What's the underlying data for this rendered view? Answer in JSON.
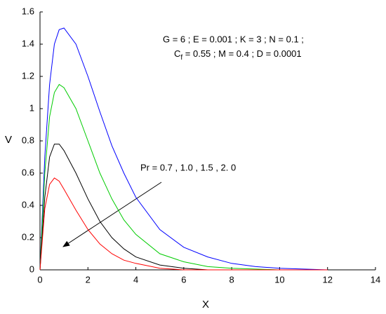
{
  "chart_data": {
    "type": "line",
    "x_label": "X",
    "y_label": "V",
    "annotation_line1": "G = 6 ;  E = 0.001 ; K = 3 ; N = 0.1 ;",
    "annotation_line2": [
      "C",
      "f",
      " = 0.55 ; M = 0.4 ; D = 0.0001"
    ],
    "arrow_label": "Pr = 0.7 , 1.0 , 1.5 , 2. 0",
    "x": [
      0,
      0.2,
      0.4,
      0.6,
      0.8,
      1,
      1.5,
      2,
      2.5,
      3,
      3.5,
      4,
      5,
      6,
      7,
      8,
      9,
      10,
      11,
      12
    ],
    "series": [
      {
        "color": "#0000ff",
        "values": [
          0,
          0.7,
          1.15,
          1.4,
          1.49,
          1.5,
          1.4,
          1.2,
          0.98,
          0.77,
          0.6,
          0.45,
          0.25,
          0.14,
          0.08,
          0.04,
          0.02,
          0.01,
          0.005,
          0
        ]
      },
      {
        "color": "#00cc00",
        "values": [
          0,
          0.6,
          0.95,
          1.1,
          1.15,
          1.13,
          1.0,
          0.8,
          0.6,
          0.44,
          0.31,
          0.22,
          0.1,
          0.05,
          0.02,
          0.01,
          0.005,
          0,
          0,
          0
        ]
      },
      {
        "color": "#000000",
        "values": [
          0,
          0.45,
          0.7,
          0.78,
          0.78,
          0.74,
          0.6,
          0.44,
          0.3,
          0.2,
          0.13,
          0.08,
          0.03,
          0.01,
          0,
          0,
          0,
          0,
          0,
          0
        ]
      },
      {
        "color": "#ff0000",
        "values": [
          0,
          0.38,
          0.53,
          0.57,
          0.55,
          0.5,
          0.37,
          0.25,
          0.16,
          0.1,
          0.06,
          0.04,
          0.01,
          0,
          0,
          0,
          0,
          0,
          0,
          0
        ]
      }
    ],
    "xlim": [
      0,
      14
    ],
    "xticks": [
      0,
      2,
      4,
      6,
      8,
      10,
      12,
      14
    ],
    "ylim": [
      0,
      1.6
    ],
    "yticks": [
      0,
      0.2,
      0.4,
      0.6,
      0.8,
      1,
      1.2,
      1.4,
      1.6
    ],
    "grid": false
  }
}
